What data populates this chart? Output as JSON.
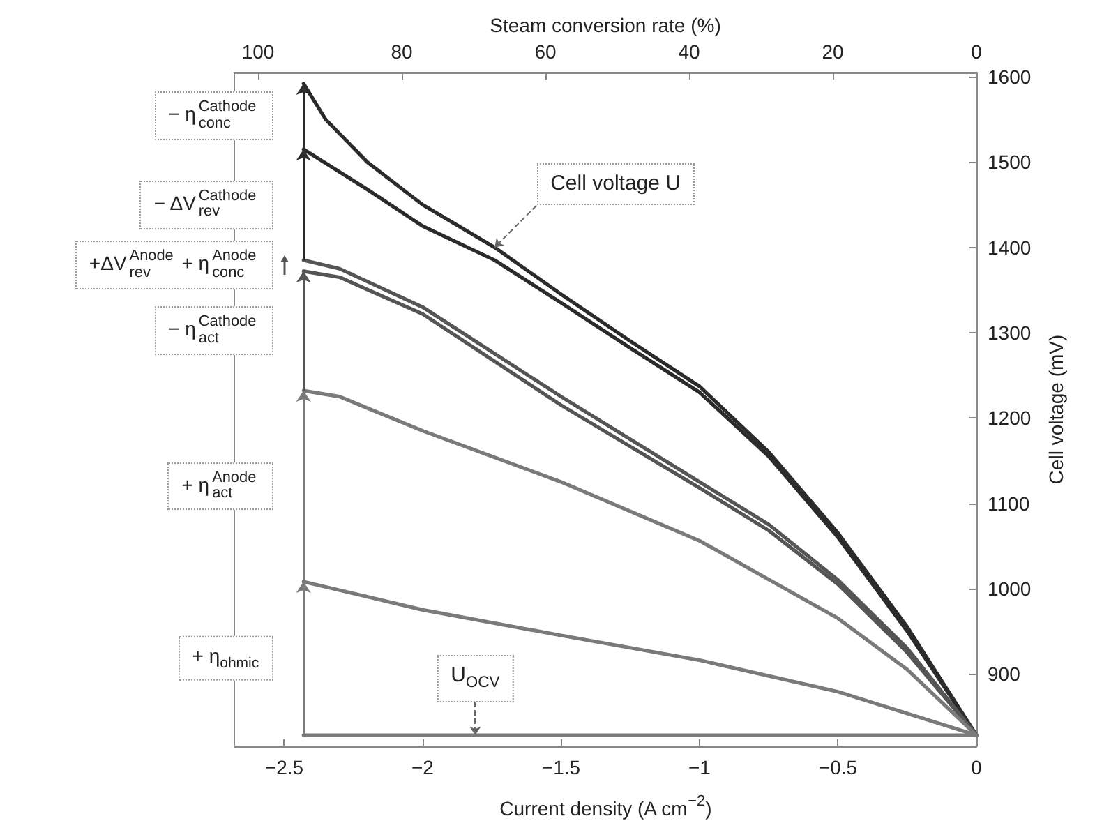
{
  "chart_data": {
    "type": "line",
    "xlabel": "Current density (A cm$^{−2}$)",
    "ylabel": "Cell voltage (mV)",
    "x2label": "Steam conversion rate (%)",
    "xlim": [
      -2.68,
      0
    ],
    "xticks": [
      {
        "value": -2.5,
        "label": "−2.5"
      },
      {
        "value": -2,
        "label": "−2"
      },
      {
        "value": -1.5,
        "label": "−1.5"
      },
      {
        "value": -1,
        "label": "−1"
      },
      {
        "value": -0.5,
        "label": "−0.5"
      },
      0
    ],
    "x2lim": [
      103.3,
      0
    ],
    "x2ticks": [
      100,
      80,
      60,
      40,
      20,
      0
    ],
    "ylim": [
      815,
      1605
    ],
    "yticks": [
      900,
      1000,
      1100,
      1200,
      1300,
      1400,
      1500,
      1600
    ],
    "marker": "none",
    "series": [
      {
        "color": "#2b2b2b",
        "x": [
          -2.43,
          -2.35,
          -2.2,
          -2,
          -1.74,
          -1.5,
          -1.25,
          -1,
          -0.75,
          -0.5,
          -0.25,
          0
        ],
        "values": [
          1592,
          1550,
          1500,
          1450,
          1400,
          1345,
          1290,
          1237,
          1160,
          1065,
          955,
          828
        ]
      },
      {
        "color": "#2b2b2b",
        "x": [
          -2.43,
          -2.2,
          -2,
          -1.74,
          -1.5,
          -1.25,
          -1,
          -0.75,
          -0.5,
          -0.25,
          0
        ],
        "values": [
          1515,
          1468,
          1425,
          1385,
          1335,
          1282,
          1230,
          1155,
          1060,
          950,
          828
        ]
      },
      {
        "color": "#555555",
        "x": [
          -2.43,
          -2.3,
          -2,
          -1.5,
          -1,
          -0.75,
          -0.5,
          -0.25,
          0
        ],
        "values": [
          1385,
          1375,
          1330,
          1225,
          1125,
          1075,
          1010,
          930,
          828
        ]
      },
      {
        "color": "#555555",
        "x": [
          -2.43,
          -2.3,
          -2,
          -1.5,
          -1,
          -0.75,
          -0.5,
          -0.25,
          0
        ],
        "values": [
          1372,
          1365,
          1322,
          1215,
          1118,
          1068,
          1005,
          925,
          828
        ]
      },
      {
        "color": "#7a7a7a",
        "x": [
          -2.43,
          -2.3,
          -2,
          -1.5,
          -1,
          -0.5,
          -0.25,
          0
        ],
        "values": [
          1232,
          1225,
          1185,
          1125,
          1056,
          965,
          905,
          828
        ]
      },
      {
        "color": "#7a7a7a",
        "x": [
          -2.43,
          -2,
          -1.5,
          -1,
          -0.5,
          0
        ],
        "values": [
          1008,
          975,
          945,
          916,
          879,
          828
        ]
      },
      {
        "color": "#7a7a7a",
        "x": [
          -2.43,
          0
        ],
        "values": [
          828,
          828
        ]
      }
    ],
    "annotations": [
      "− η$^{Cathode}$$_{conc}$",
      "− ΔV$^{Cathode}$$_{rev}$",
      "+ΔV$^{Anode}$$_{rev}$ + η$^{Anode}$$_{conc}$",
      "− η$^{Cathode}$$_{act}$",
      "+ η$^{Anode}$$_{act}$",
      "+ η$_{ohmic}$",
      {
        "text": "Cell voltage U",
        "x": -1.74,
        "y": 1400
      },
      {
        "text": "U$_{OCV}$",
        "x": -1.81,
        "y": 828
      }
    ]
  }
}
